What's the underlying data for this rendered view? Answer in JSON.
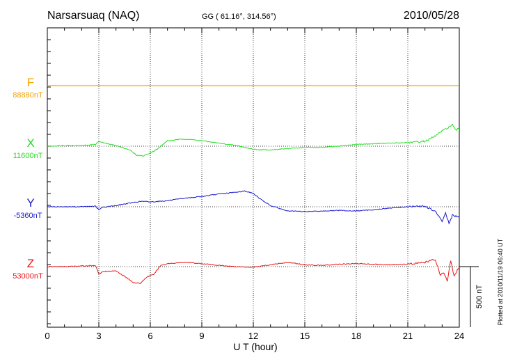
{
  "chart_data": {
    "type": "line",
    "station": "Narsarsuaq (NAQ)",
    "coords": "GG ( 61.16°, 314.56°)",
    "date": "2010/05/28",
    "plotted_note": "Plotted at 2010/11/19 06:40 UT",
    "xlabel": "U T (hour)",
    "xlim": [
      0,
      24
    ],
    "xticks": [
      "0",
      "3",
      "6",
      "9",
      "12",
      "15",
      "18",
      "21",
      "24"
    ],
    "grid": true,
    "scale_bar": {
      "label": "500 nT",
      "value_nT": 500
    },
    "series": [
      {
        "name": "F",
        "baseline": "88880nT",
        "color": "#f5a300",
        "x": [
          0,
          24
        ],
        "y": [
          0,
          0
        ]
      },
      {
        "name": "X",
        "baseline": "11600nT",
        "color": "#22dd22",
        "x": [
          0,
          1,
          2,
          2.8,
          3.0,
          3.2,
          4,
          4.8,
          5.2,
          5.6,
          6.0,
          6.4,
          7,
          8,
          9,
          10,
          11,
          12,
          12.5,
          13,
          14,
          15,
          16,
          17,
          18,
          19,
          20,
          21,
          22,
          22.5,
          23,
          23.3,
          23.6,
          23.8,
          24
        ],
        "y": [
          0,
          5,
          5,
          15,
          40,
          30,
          5,
          -30,
          -75,
          -80,
          -55,
          -25,
          45,
          60,
          45,
          25,
          5,
          -25,
          -30,
          -30,
          -20,
          -10,
          -10,
          0,
          15,
          20,
          25,
          30,
          40,
          75,
          125,
          150,
          175,
          130,
          150
        ]
      },
      {
        "name": "Y",
        "baseline": "-5360nT",
        "color": "#1a1acc",
        "x": [
          0,
          1,
          2,
          2.8,
          3.0,
          3.2,
          4,
          5,
          5.5,
          6,
          7,
          8,
          9,
          10,
          11,
          11.5,
          12,
          12.5,
          13,
          14,
          15,
          16,
          17,
          18,
          19,
          20,
          21,
          22,
          22.6,
          23.0,
          23.2,
          23.4,
          23.6,
          24
        ],
        "y": [
          0,
          0,
          0,
          5,
          -25,
          -5,
          10,
          35,
          45,
          40,
          50,
          70,
          85,
          105,
          120,
          130,
          110,
          55,
          10,
          -35,
          -40,
          -35,
          -30,
          -35,
          -25,
          -10,
          0,
          5,
          -40,
          -120,
          -50,
          -140,
          -70,
          -90
        ]
      },
      {
        "name": "Z",
        "baseline": "53000nT",
        "color": "#e81414",
        "x": [
          0,
          1,
          2,
          2.8,
          3.0,
          3.3,
          4,
          4.5,
          5.0,
          5.4,
          5.8,
          6.2,
          6.6,
          7,
          8,
          9,
          10,
          11,
          12,
          13,
          14,
          15,
          16,
          17,
          18,
          19,
          20,
          21,
          22,
          22.6,
          22.9,
          23.1,
          23.3,
          23.5,
          23.7,
          24
        ],
        "y": [
          0,
          0,
          5,
          10,
          -60,
          -40,
          -35,
          -80,
          -130,
          -140,
          -85,
          -65,
          10,
          25,
          35,
          25,
          10,
          0,
          -5,
          15,
          35,
          15,
          10,
          20,
          25,
          20,
          15,
          20,
          35,
          60,
          -70,
          -50,
          -120,
          50,
          -80,
          0
        ]
      }
    ]
  }
}
